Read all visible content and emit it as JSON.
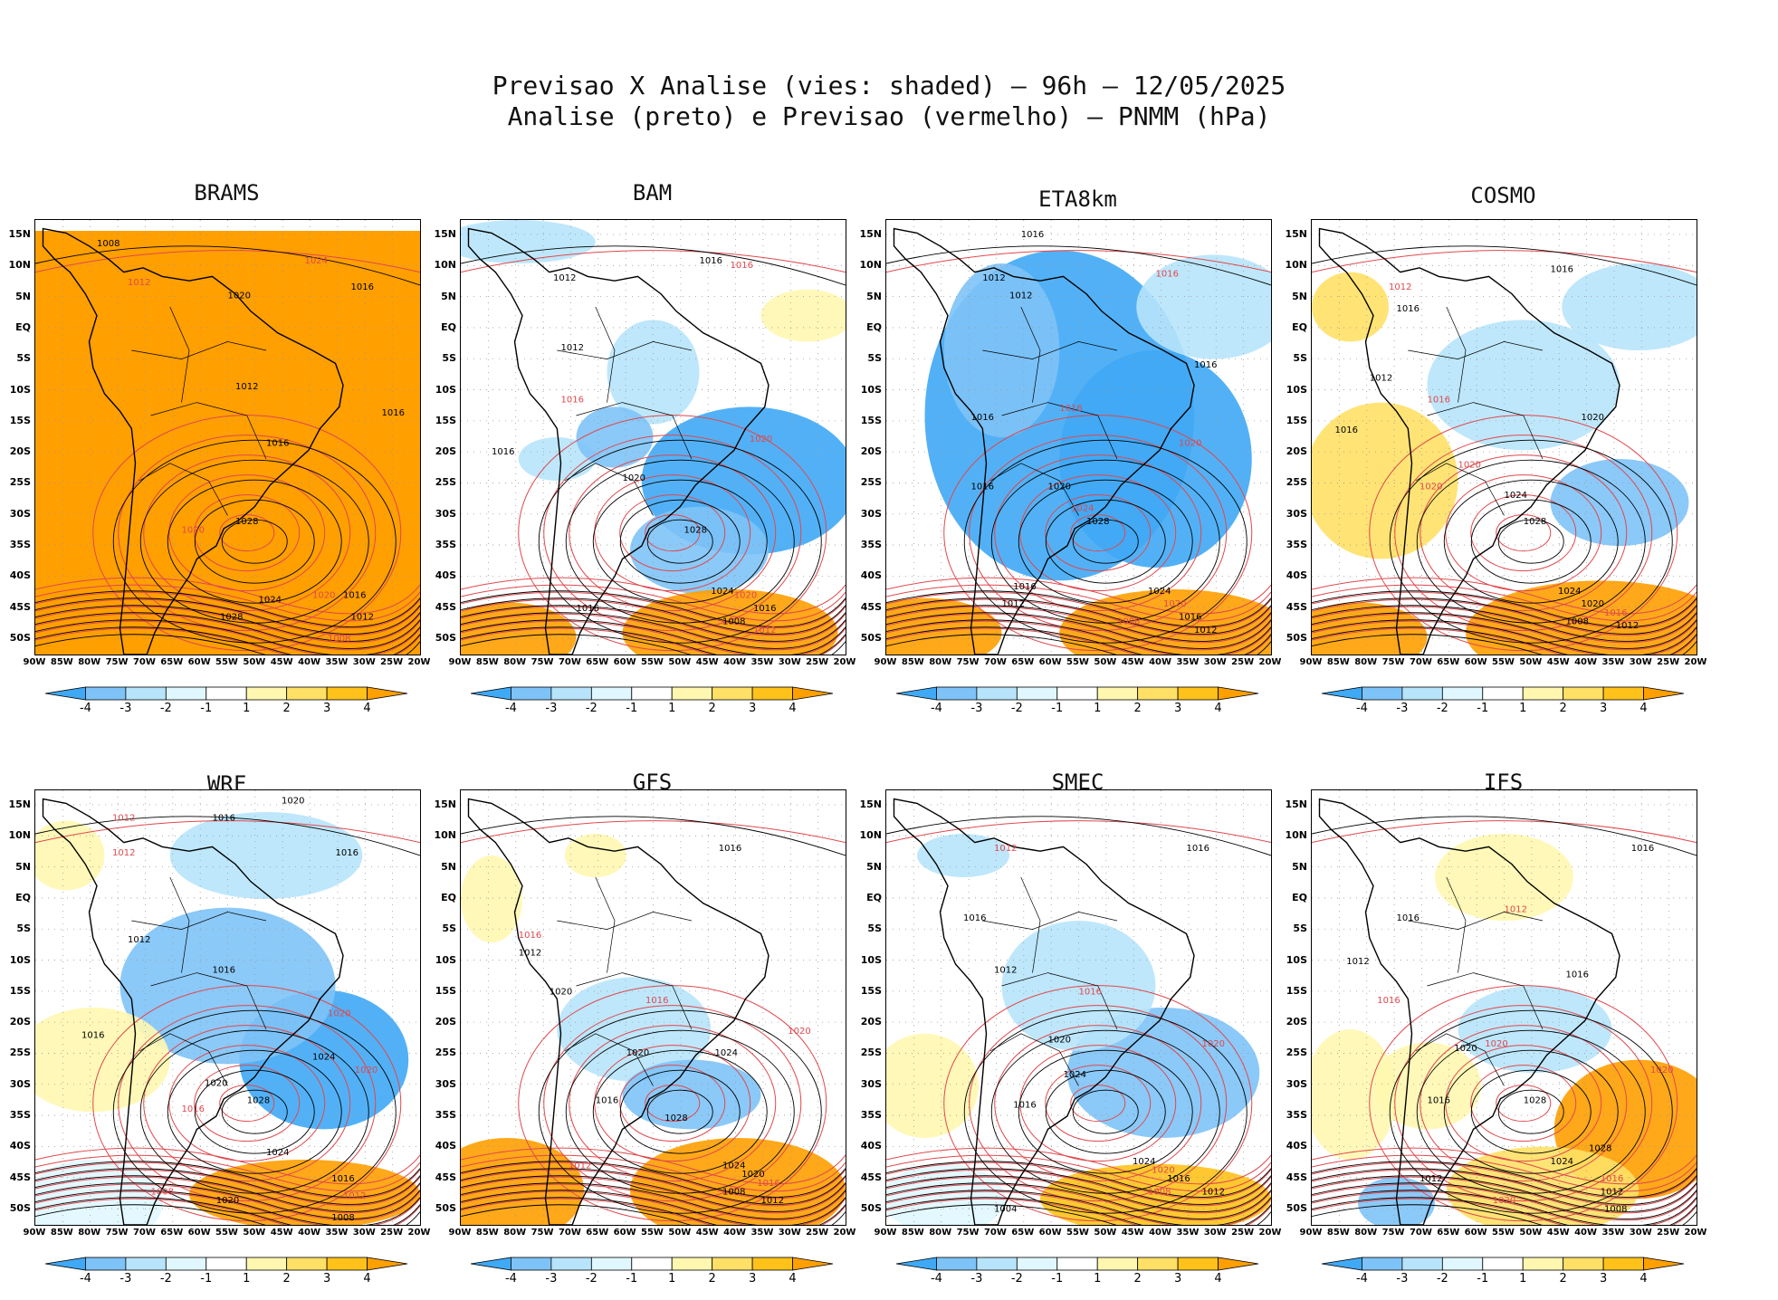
{
  "header": {
    "title_line1": "Previsao X Analise (vies: shaded) – 96h – 12/05/2025",
    "title_line2": "Analise (preto) e Previsao (vermelho) – PNMM (hPa)"
  },
  "lat_labels": [
    "15N",
    "10N",
    "5N",
    "EQ",
    "5S",
    "10S",
    "15S",
    "20S",
    "25S",
    "30S",
    "35S",
    "40S",
    "45S",
    "50S"
  ],
  "lon_labels": [
    "90W",
    "85W",
    "80W",
    "75W",
    "70W",
    "65W",
    "60W",
    "55W",
    "50W",
    "45W",
    "40W",
    "35W",
    "30W",
    "25W",
    "20W"
  ],
  "colorbar": {
    "ticks": [
      "-4",
      "-3",
      "-2",
      "-1",
      "1",
      "2",
      "3",
      "4"
    ],
    "colors": [
      "#3fa9f5",
      "#7ec3f7",
      "#b7e4fb",
      "#e0f7ff",
      "#ffffff",
      "#fff7b0",
      "#ffe066",
      "#ffc21a",
      "#ff9f00",
      "#ff9f00"
    ]
  },
  "colors": {
    "analysis_contour": "#000000",
    "forecast_contour": "#e0484d",
    "grid": "#999999"
  },
  "models": [
    {
      "name": "BRAMS",
      "bias": "warm_full",
      "labels": [
        [
          "1008",
          0.16,
          0.06
        ],
        [
          "1012",
          0.24,
          0.15
        ],
        [
          "1016",
          0.82,
          0.16
        ],
        [
          "1020",
          0.5,
          0.18
        ],
        [
          "1024",
          0.7,
          0.1
        ],
        [
          "1012",
          0.52,
          0.39
        ],
        [
          "1016",
          0.9,
          0.45
        ],
        [
          "1020",
          0.38,
          0.72
        ],
        [
          "1028",
          0.52,
          0.7
        ],
        [
          "1024",
          0.58,
          0.88
        ],
        [
          "1020",
          0.72,
          0.87
        ],
        [
          "1016",
          0.8,
          0.87
        ],
        [
          "1012",
          0.82,
          0.92
        ],
        [
          "1008",
          0.76,
          0.97
        ],
        [
          "1028",
          0.48,
          0.92
        ],
        [
          "1016",
          0.6,
          0.52
        ]
      ]
    },
    {
      "name": "BAM",
      "bias": "cool_south",
      "labels": [
        [
          "1016",
          0.62,
          0.1
        ],
        [
          "1016",
          0.7,
          0.11
        ],
        [
          "1012",
          0.24,
          0.14
        ],
        [
          "1012",
          0.26,
          0.3
        ],
        [
          "1016",
          0.26,
          0.42
        ],
        [
          "1016",
          0.08,
          0.54
        ],
        [
          "1020",
          0.42,
          0.6
        ],
        [
          "1020",
          0.75,
          0.51
        ],
        [
          "1028",
          0.58,
          0.72
        ],
        [
          "1024",
          0.65,
          0.86
        ],
        [
          "1020",
          0.71,
          0.87
        ],
        [
          "1016",
          0.76,
          0.9
        ],
        [
          "1008",
          0.68,
          0.93
        ],
        [
          "1012",
          0.76,
          0.95
        ],
        [
          "1016",
          0.3,
          0.9
        ]
      ]
    },
    {
      "name": "ETA8km",
      "bias": "cool_full",
      "labels": [
        [
          "1016",
          0.35,
          0.04
        ],
        [
          "1016",
          0.7,
          0.13
        ],
        [
          "1012",
          0.25,
          0.14
        ],
        [
          "1012",
          0.32,
          0.18
        ],
        [
          "1016",
          0.45,
          0.44
        ],
        [
          "1016",
          0.8,
          0.34
        ],
        [
          "1016",
          0.22,
          0.46
        ],
        [
          "1020",
          0.76,
          0.52
        ],
        [
          "1016",
          0.22,
          0.62
        ],
        [
          "1020",
          0.42,
          0.62
        ],
        [
          "1024",
          0.48,
          0.67
        ],
        [
          "1028",
          0.52,
          0.7
        ],
        [
          "1024",
          0.68,
          0.86
        ],
        [
          "1020",
          0.72,
          0.89
        ],
        [
          "1016",
          0.76,
          0.92
        ],
        [
          "1012",
          0.8,
          0.95
        ],
        [
          "1008",
          0.6,
          0.93
        ],
        [
          "1016",
          0.33,
          0.85
        ],
        [
          "1012",
          0.3,
          0.89
        ]
      ]
    },
    {
      "name": "COSMO",
      "bias": "mixed_a",
      "labels": [
        [
          "1016",
          0.62,
          0.12
        ],
        [
          "1012",
          0.2,
          0.16
        ],
        [
          "1016",
          0.22,
          0.21
        ],
        [
          "1012",
          0.15,
          0.37
        ],
        [
          "1016",
          0.3,
          0.42
        ],
        [
          "1016",
          0.06,
          0.49
        ],
        [
          "1020",
          0.7,
          0.46
        ],
        [
          "1020",
          0.38,
          0.57
        ],
        [
          "1024",
          0.5,
          0.64
        ],
        [
          "1028",
          0.55,
          0.7
        ],
        [
          "1020",
          0.28,
          0.62
        ],
        [
          "1024",
          0.64,
          0.86
        ],
        [
          "1020",
          0.7,
          0.89
        ],
        [
          "1016",
          0.76,
          0.91
        ],
        [
          "1008",
          0.66,
          0.93
        ],
        [
          "1012",
          0.79,
          0.94
        ]
      ]
    },
    {
      "name": "WRF",
      "bias": "mixed_b",
      "labels": [
        [
          "1020",
          0.64,
          0.03
        ],
        [
          "1012",
          0.2,
          0.07
        ],
        [
          "1016",
          0.46,
          0.07
        ],
        [
          "1016",
          0.78,
          0.15
        ],
        [
          "1012",
          0.2,
          0.15
        ],
        [
          "1012",
          0.24,
          0.35
        ],
        [
          "1016",
          0.46,
          0.42
        ],
        [
          "1020",
          0.76,
          0.52
        ],
        [
          "1016",
          0.12,
          0.57
        ],
        [
          "1024",
          0.72,
          0.62
        ],
        [
          "1020",
          0.83,
          0.65
        ],
        [
          "1020",
          0.44,
          0.68
        ],
        [
          "1028",
          0.55,
          0.72
        ],
        [
          "1016",
          0.38,
          0.74
        ],
        [
          "1024",
          0.6,
          0.84
        ],
        [
          "1016",
          0.77,
          0.9
        ],
        [
          "1012",
          0.8,
          0.94
        ],
        [
          "1008",
          0.77,
          0.99
        ],
        [
          "1020",
          0.47,
          0.95
        ],
        [
          "1008",
          0.3,
          0.93
        ]
      ]
    },
    {
      "name": "GFS",
      "bias": "warm_south",
      "labels": [
        [
          "1016",
          0.67,
          0.14
        ],
        [
          "1016",
          0.15,
          0.34
        ],
        [
          "1012",
          0.15,
          0.38
        ],
        [
          "1020",
          0.23,
          0.47
        ],
        [
          "1016",
          0.48,
          0.49
        ],
        [
          "1020",
          0.43,
          0.61
        ],
        [
          "1024",
          0.66,
          0.61
        ],
        [
          "1020",
          0.85,
          0.56
        ],
        [
          "1016",
          0.35,
          0.72
        ],
        [
          "1028",
          0.53,
          0.76
        ],
        [
          "1012",
          0.28,
          0.87
        ],
        [
          "1024",
          0.68,
          0.87
        ],
        [
          "1020",
          0.73,
          0.89
        ],
        [
          "1016",
          0.77,
          0.91
        ],
        [
          "1008",
          0.68,
          0.93
        ],
        [
          "1012",
          0.78,
          0.95
        ]
      ]
    },
    {
      "name": "SMEC",
      "bias": "cool_mixed",
      "labels": [
        [
          "1016",
          0.78,
          0.14
        ],
        [
          "1012",
          0.28,
          0.14
        ],
        [
          "1016",
          0.2,
          0.3
        ],
        [
          "1012",
          0.28,
          0.42
        ],
        [
          "1016",
          0.5,
          0.47
        ],
        [
          "1020",
          0.42,
          0.58
        ],
        [
          "1024",
          0.46,
          0.66
        ],
        [
          "1020",
          0.82,
          0.59
        ],
        [
          "1016",
          0.33,
          0.73
        ],
        [
          "1024",
          0.64,
          0.86
        ],
        [
          "1020",
          0.69,
          0.88
        ],
        [
          "1016",
          0.73,
          0.9
        ],
        [
          "1012",
          0.82,
          0.93
        ],
        [
          "1008",
          0.68,
          0.93
        ],
        [
          "1004",
          0.28,
          0.97
        ]
      ]
    },
    {
      "name": "IFS",
      "bias": "mixed_c",
      "labels": [
        [
          "1016",
          0.83,
          0.14
        ],
        [
          "1012",
          0.5,
          0.28
        ],
        [
          "1016",
          0.22,
          0.3
        ],
        [
          "1016",
          0.66,
          0.43
        ],
        [
          "1016",
          0.17,
          0.49
        ],
        [
          "1012",
          0.09,
          0.4
        ],
        [
          "1020",
          0.37,
          0.6
        ],
        [
          "1020",
          0.45,
          0.59
        ],
        [
          "1016",
          0.3,
          0.72
        ],
        [
          "1028",
          0.55,
          0.72
        ],
        [
          "1020",
          0.88,
          0.65
        ],
        [
          "1028",
          0.72,
          0.83
        ],
        [
          "1024",
          0.62,
          0.86
        ],
        [
          "1016",
          0.75,
          0.9
        ],
        [
          "1012",
          0.75,
          0.93
        ],
        [
          "1008",
          0.76,
          0.97
        ],
        [
          "1020",
          0.47,
          0.95
        ],
        [
          "1012",
          0.28,
          0.9
        ]
      ]
    }
  ]
}
